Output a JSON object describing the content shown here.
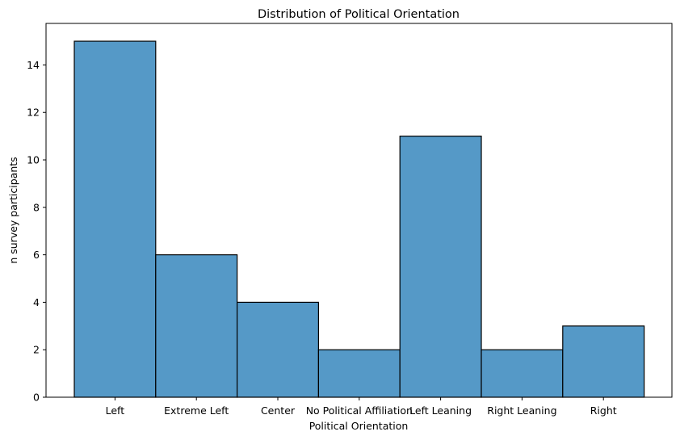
{
  "chart_data": {
    "type": "bar",
    "title": "Distribution of Political Orientation",
    "xlabel": "Political Orientation",
    "ylabel": "n survey participants",
    "categories": [
      "Left",
      "Extreme Left",
      "Center",
      "No Political Affiliation",
      "Left Leaning",
      "Right Leaning",
      "Right"
    ],
    "values": [
      15,
      6,
      4,
      2,
      11,
      2,
      3
    ],
    "ylim": [
      0,
      15.75
    ],
    "yticks": [
      "0",
      "2",
      "4",
      "6",
      "8",
      "10",
      "12",
      "14"
    ],
    "grid": false,
    "legend": "none",
    "bar_color": "#5599c7",
    "edge_color": "#000000"
  }
}
